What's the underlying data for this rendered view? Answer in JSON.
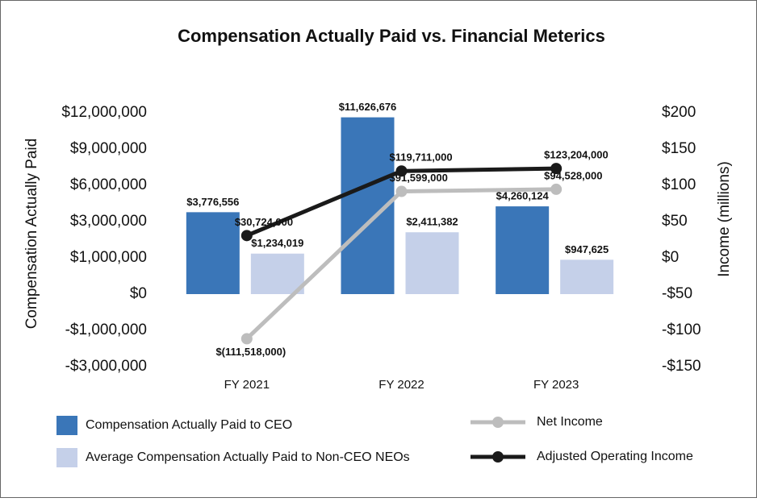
{
  "chart_data": {
    "type": "bar",
    "title": "Compensation Actually Paid vs. Financial Meterics",
    "y_label": "Compensation Actually Paid",
    "y2_label": "Income (millions)",
    "categories": [
      "FY 2021",
      "FY 2022",
      "FY 2023"
    ],
    "ylim": [
      -3000000,
      12000000
    ],
    "yticks": [
      {
        "value": 12000000,
        "label": "$12,000,000"
      },
      {
        "value": 9000000,
        "label": "$9,000,000"
      },
      {
        "value": 6000000,
        "label": "$6,000,000"
      },
      {
        "value": 3000000,
        "label": "$3,000,000"
      },
      {
        "value": 1000000,
        "label": "$1,000,000"
      },
      {
        "value": 0,
        "label": "$0"
      },
      {
        "value": -1000000,
        "label": "-$1,000,000"
      },
      {
        "value": -3000000,
        "label": "-$3,000,000"
      }
    ],
    "y2lim": [
      -150,
      200
    ],
    "y2ticks": [
      {
        "value": 200,
        "label": "$200"
      },
      {
        "value": 150,
        "label": "$150"
      },
      {
        "value": 100,
        "label": "$100"
      },
      {
        "value": 50,
        "label": "$50"
      },
      {
        "value": 0,
        "label": "$0"
      },
      {
        "value": -50,
        "label": "-$50"
      },
      {
        "value": -100,
        "label": "-$100"
      },
      {
        "value": -150,
        "label": "-$150"
      }
    ],
    "series": [
      {
        "name": "Compensation Actually Paid to CEO",
        "type": "bar",
        "color": "#3a76b8",
        "values": [
          3776556,
          11626676,
          4260124
        ],
        "value_labels": [
          "$3,776,556",
          "$11,626,676",
          "$4,260,124"
        ]
      },
      {
        "name": "Average Compensation Actually Paid to Non-CEO NEOs",
        "type": "bar",
        "color": "#c5d0e9",
        "values": [
          1234019,
          2411382,
          947625
        ],
        "value_labels": [
          "$1,234,019",
          "$2,411,382",
          "$947,625"
        ]
      },
      {
        "name": "Net Income",
        "type": "line",
        "axis": "y2",
        "color": "#bdbdbd",
        "values": [
          -111.518,
          91.599,
          94.528
        ],
        "value_labels": [
          "$(111,518,000)",
          "$91,599,000",
          "$94,528,000"
        ]
      },
      {
        "name": "Adjusted Operating Income",
        "type": "line",
        "axis": "y2",
        "color": "#1a1a1a",
        "values": [
          30.724,
          119.711,
          123.204
        ],
        "value_labels": [
          "$30,724,000",
          "$119,711,000",
          "$123,204,000"
        ]
      }
    ]
  }
}
